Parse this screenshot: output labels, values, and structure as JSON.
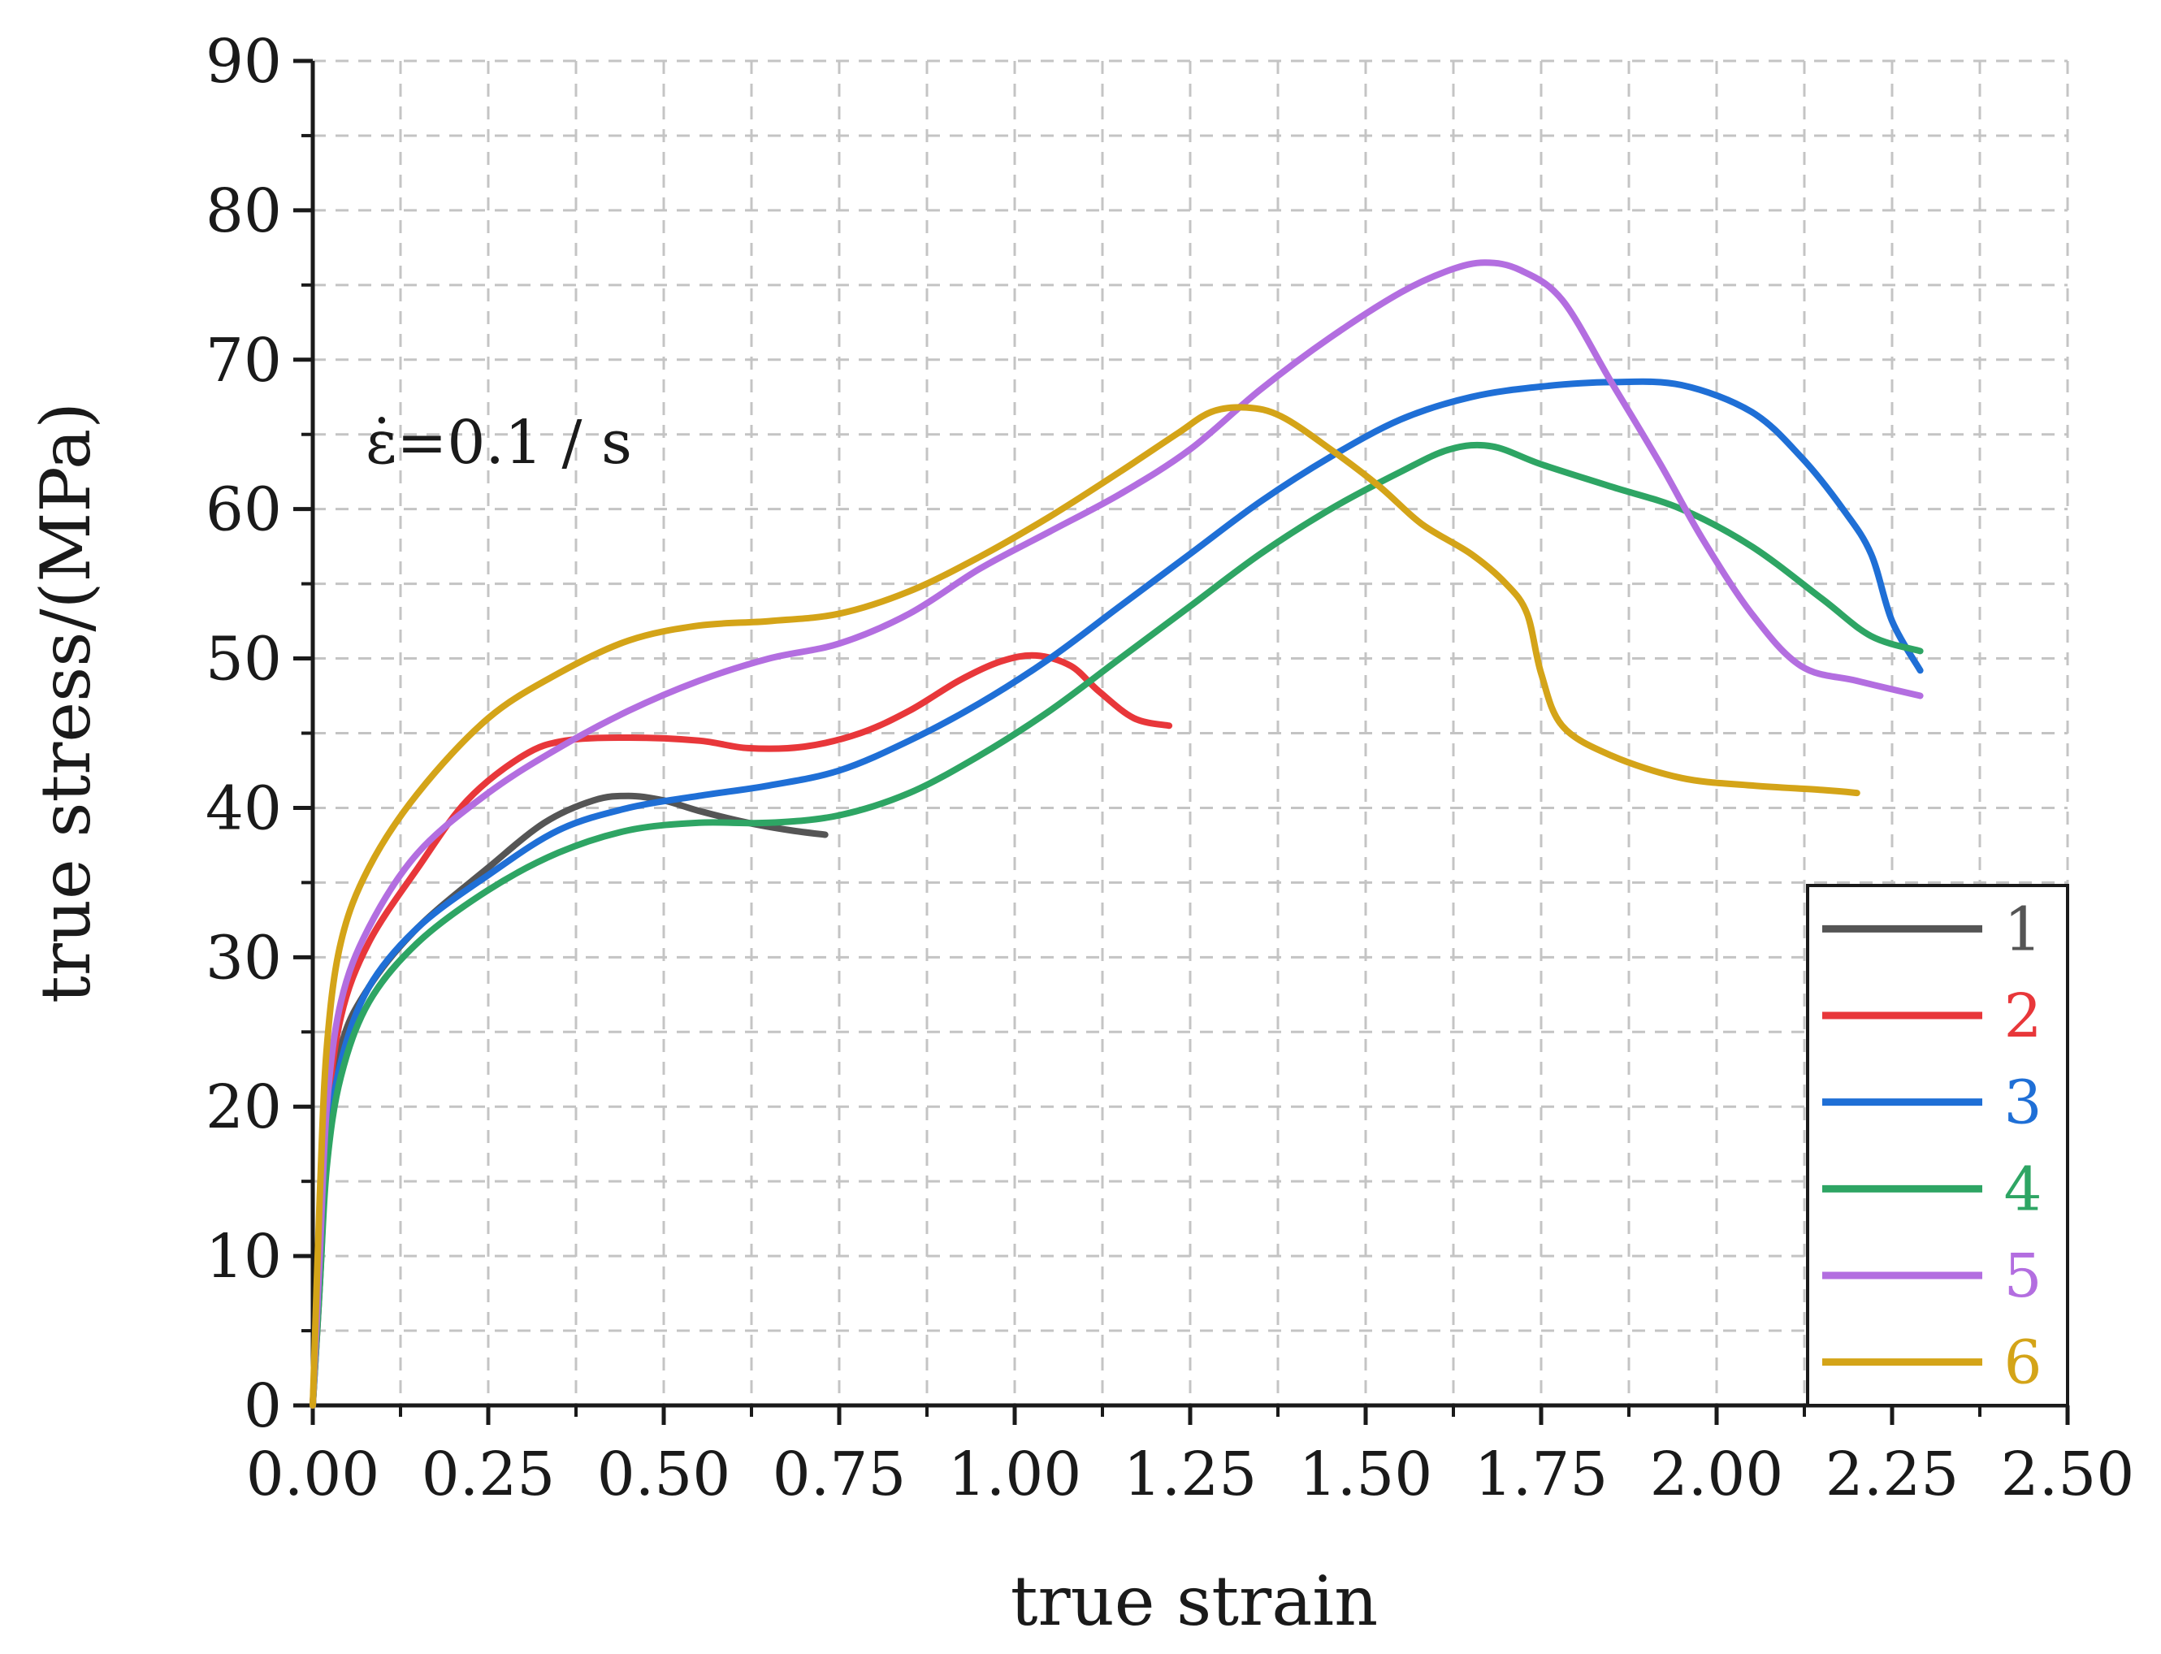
{
  "chart_data": {
    "type": "line",
    "title": "",
    "xlabel": "true strain",
    "ylabel": "true stress/(MPa)",
    "annotation": "ε̇=0.1 / s",
    "xlim": [
      0,
      2.5
    ],
    "ylim": [
      0,
      90
    ],
    "x_ticks": [
      "0.00",
      "0.25",
      "0.50",
      "0.75",
      "1.00",
      "1.25",
      "1.50",
      "1.75",
      "2.00",
      "2.25",
      "2.50"
    ],
    "y_ticks": [
      "0",
      "10",
      "20",
      "30",
      "40",
      "50",
      "60",
      "70",
      "80",
      "90"
    ],
    "grid": true,
    "legend_position": "bottom-right",
    "series": [
      {
        "name": "1",
        "color": "#555555",
        "points": [
          [
            0,
            0
          ],
          [
            0.01,
            8
          ],
          [
            0.02,
            17
          ],
          [
            0.04,
            24
          ],
          [
            0.08,
            28
          ],
          [
            0.15,
            32
          ],
          [
            0.25,
            36
          ],
          [
            0.33,
            39
          ],
          [
            0.4,
            40.5
          ],
          [
            0.45,
            40.8
          ],
          [
            0.5,
            40.5
          ],
          [
            0.55,
            39.8
          ],
          [
            0.62,
            39
          ],
          [
            0.68,
            38.5
          ],
          [
            0.73,
            38.2
          ]
        ]
      },
      {
        "name": "2",
        "color": "#e8373a",
        "points": [
          [
            0,
            0
          ],
          [
            0.01,
            10
          ],
          [
            0.02,
            19
          ],
          [
            0.04,
            26
          ],
          [
            0.08,
            31
          ],
          [
            0.15,
            36
          ],
          [
            0.22,
            40.5
          ],
          [
            0.3,
            43.5
          ],
          [
            0.36,
            44.5
          ],
          [
            0.45,
            44.7
          ],
          [
            0.55,
            44.5
          ],
          [
            0.62,
            44
          ],
          [
            0.7,
            44.1
          ],
          [
            0.78,
            45
          ],
          [
            0.85,
            46.5
          ],
          [
            0.92,
            48.5
          ],
          [
            0.98,
            49.8
          ],
          [
            1.03,
            50.2
          ],
          [
            1.08,
            49.5
          ],
          [
            1.12,
            47.8
          ],
          [
            1.17,
            46
          ],
          [
            1.22,
            45.5
          ]
        ]
      },
      {
        "name": "3",
        "color": "#1f6fd6",
        "points": [
          [
            0,
            0
          ],
          [
            0.01,
            9
          ],
          [
            0.02,
            17
          ],
          [
            0.04,
            23
          ],
          [
            0.08,
            28
          ],
          [
            0.15,
            32
          ],
          [
            0.25,
            35.5
          ],
          [
            0.35,
            38.5
          ],
          [
            0.45,
            40
          ],
          [
            0.55,
            40.8
          ],
          [
            0.65,
            41.5
          ],
          [
            0.75,
            42.5
          ],
          [
            0.85,
            44.5
          ],
          [
            0.95,
            47
          ],
          [
            1.05,
            50
          ],
          [
            1.15,
            53.5
          ],
          [
            1.25,
            57
          ],
          [
            1.35,
            60.5
          ],
          [
            1.45,
            63.5
          ],
          [
            1.55,
            66
          ],
          [
            1.65,
            67.5
          ],
          [
            1.75,
            68.2
          ],
          [
            1.85,
            68.5
          ],
          [
            1.95,
            68.3
          ],
          [
            2.05,
            66.5
          ],
          [
            2.12,
            63.5
          ],
          [
            2.18,
            60
          ],
          [
            2.22,
            57
          ],
          [
            2.25,
            52.5
          ],
          [
            2.29,
            49.2
          ]
        ]
      },
      {
        "name": "4",
        "color": "#2ea564",
        "points": [
          [
            0,
            0
          ],
          [
            0.01,
            8
          ],
          [
            0.02,
            16
          ],
          [
            0.04,
            22
          ],
          [
            0.08,
            27
          ],
          [
            0.15,
            31
          ],
          [
            0.25,
            34.5
          ],
          [
            0.35,
            37
          ],
          [
            0.45,
            38.5
          ],
          [
            0.55,
            39
          ],
          [
            0.65,
            39
          ],
          [
            0.75,
            39.5
          ],
          [
            0.85,
            41
          ],
          [
            0.95,
            43.5
          ],
          [
            1.05,
            46.5
          ],
          [
            1.15,
            50
          ],
          [
            1.25,
            53.5
          ],
          [
            1.35,
            57
          ],
          [
            1.45,
            60
          ],
          [
            1.55,
            62.5
          ],
          [
            1.62,
            64
          ],
          [
            1.68,
            64.2
          ],
          [
            1.75,
            63
          ],
          [
            1.85,
            61.5
          ],
          [
            1.95,
            60
          ],
          [
            2.05,
            57.5
          ],
          [
            2.15,
            54
          ],
          [
            2.22,
            51.5
          ],
          [
            2.29,
            50.5
          ]
        ]
      },
      {
        "name": "5",
        "color": "#b36ee0",
        "points": [
          [
            0,
            0
          ],
          [
            0.01,
            10
          ],
          [
            0.02,
            20
          ],
          [
            0.04,
            27
          ],
          [
            0.08,
            32
          ],
          [
            0.15,
            37
          ],
          [
            0.25,
            41
          ],
          [
            0.35,
            44
          ],
          [
            0.45,
            46.5
          ],
          [
            0.55,
            48.5
          ],
          [
            0.65,
            50
          ],
          [
            0.75,
            51
          ],
          [
            0.85,
            53
          ],
          [
            0.95,
            56
          ],
          [
            1.05,
            58.5
          ],
          [
            1.15,
            61
          ],
          [
            1.25,
            64
          ],
          [
            1.35,
            68
          ],
          [
            1.45,
            71.5
          ],
          [
            1.55,
            74.5
          ],
          [
            1.62,
            76
          ],
          [
            1.67,
            76.5
          ],
          [
            1.72,
            76
          ],
          [
            1.78,
            74
          ],
          [
            1.85,
            68.5
          ],
          [
            1.92,
            63
          ],
          [
            1.98,
            58
          ],
          [
            2.05,
            53
          ],
          [
            2.12,
            49.5
          ],
          [
            2.2,
            48.5
          ],
          [
            2.29,
            47.5
          ]
        ]
      },
      {
        "name": "6",
        "color": "#d4a418",
        "points": [
          [
            0,
            0
          ],
          [
            0.01,
            14
          ],
          [
            0.02,
            24
          ],
          [
            0.04,
            31
          ],
          [
            0.08,
            36
          ],
          [
            0.15,
            41
          ],
          [
            0.25,
            46
          ],
          [
            0.35,
            49
          ],
          [
            0.45,
            51.2
          ],
          [
            0.55,
            52.2
          ],
          [
            0.65,
            52.5
          ],
          [
            0.75,
            53
          ],
          [
            0.85,
            54.5
          ],
          [
            0.95,
            56.8
          ],
          [
            1.05,
            59.5
          ],
          [
            1.15,
            62.5
          ],
          [
            1.23,
            65
          ],
          [
            1.28,
            66.5
          ],
          [
            1.33,
            66.8
          ],
          [
            1.38,
            66.2
          ],
          [
            1.45,
            64
          ],
          [
            1.52,
            61.5
          ],
          [
            1.58,
            59
          ],
          [
            1.65,
            57
          ],
          [
            1.7,
            55
          ],
          [
            1.73,
            53
          ],
          [
            1.75,
            49
          ],
          [
            1.78,
            45.5
          ],
          [
            1.85,
            43.5
          ],
          [
            1.95,
            42
          ],
          [
            2.05,
            41.5
          ],
          [
            2.15,
            41.2
          ],
          [
            2.2,
            41
          ]
        ]
      }
    ]
  }
}
